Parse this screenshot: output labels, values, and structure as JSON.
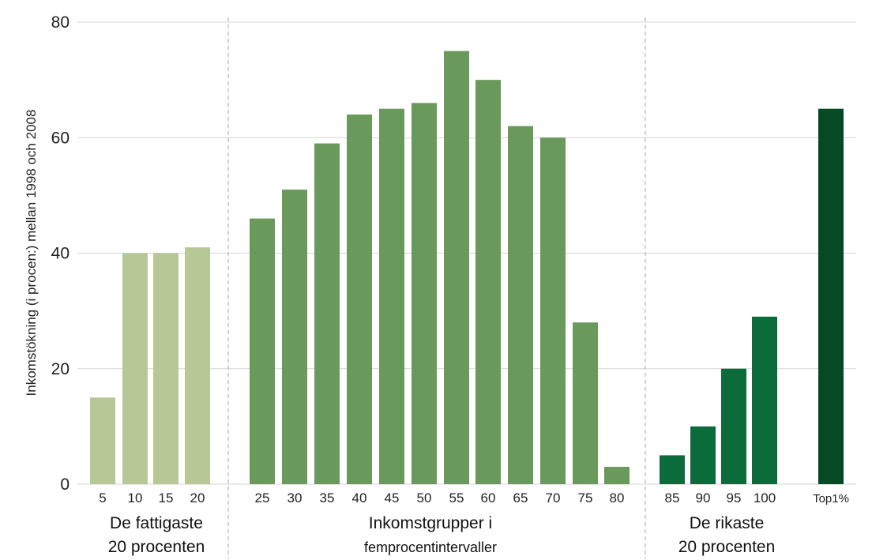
{
  "chart_data": {
    "type": "bar",
    "ylabel": "Inkomstökning (i procen:) mellan 1998 och 2008",
    "ylim": [
      0,
      80
    ],
    "yticks": [
      0,
      20,
      40,
      60,
      80
    ],
    "grid": true,
    "categories": [
      "5",
      "10",
      "15",
      "20",
      "25",
      "30",
      "35",
      "40",
      "45",
      "50",
      "55",
      "60",
      "65",
      "70",
      "75",
      "80",
      "85",
      "90",
      "95",
      "100",
      "Top1%"
    ],
    "values": [
      15,
      40,
      40,
      41,
      46,
      51,
      59,
      64,
      65,
      66,
      75,
      70,
      62,
      60,
      28,
      3,
      5,
      10,
      20,
      29,
      65
    ],
    "group_colors": [
      "#b7c795",
      "#b7c795",
      "#b7c795",
      "#b7c795",
      "#6a9a5b",
      "#6a9a5b",
      "#6a9a5b",
      "#6a9a5b",
      "#6a9a5b",
      "#6a9a5b",
      "#6a9a5b",
      "#6a9a5b",
      "#6a9a5b",
      "#6a9a5b",
      "#6a9a5b",
      "#6a9a5b",
      "#0c6b3a",
      "#0c6b3a",
      "#0c6b3a",
      "#0c6b3a",
      "#064a25"
    ],
    "groups": [
      {
        "line1": "De fattigaste",
        "line2": "20 procenten"
      },
      {
        "line1": "Inkomstgrupper i",
        "line2": "femprocentintervaller"
      },
      {
        "line1": "De rikaste",
        "line2": "20 procenten"
      }
    ]
  }
}
